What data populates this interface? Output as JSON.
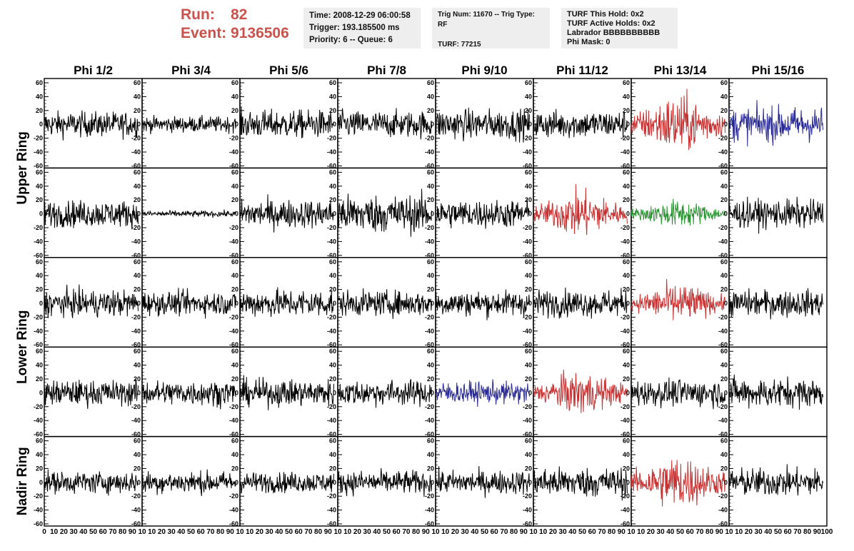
{
  "header": {
    "run_label": "Run:",
    "run_value": "82",
    "event_label": "Event:",
    "event_value": "9136506",
    "panel1": [
      "Time: 2008-12-29 06:00:58",
      "Trigger: 193.185500 ms",
      "Priority: 6 -- Queue: 6"
    ],
    "panel2": [
      "Trig Num: 11670 -- Trig Type: RF",
      "",
      "TURF: 77215"
    ],
    "panel3": [
      "TURF This Hold: 0x2",
      "TURF Active Holds: 0x2",
      "Labrador BBBBBBBBBB",
      "Phi Mask: 0"
    ]
  },
  "chart_data": {
    "type": "line",
    "columns": [
      "Phi 1/2",
      "Phi 3/4",
      "Phi 5/6",
      "Phi 7/8",
      "Phi 9/10",
      "Phi 11/12",
      "Phi 13/14",
      "Phi 15/16"
    ],
    "row_groups": [
      {
        "label": "Upper Ring",
        "rows": [
          0,
          1
        ]
      },
      {
        "label": "Lower Ring",
        "rows": [
          2,
          3
        ]
      },
      {
        "label": "Nadir Ring",
        "rows": [
          4
        ]
      }
    ],
    "xlim": [
      0,
      100
    ],
    "ylim": [
      -60,
      60
    ],
    "y_ticks": [
      60,
      40,
      20,
      0,
      -20,
      -40,
      -60
    ],
    "y_tick_labels": [
      "60",
      "40",
      "20",
      "0",
      "-20",
      "-40",
      "-60"
    ],
    "x_tick_labels": [
      "0",
      "10",
      "20",
      "30",
      "40",
      "50",
      "60",
      "70",
      "80",
      "90",
      "10",
      "10",
      "20",
      "30",
      "40",
      "50",
      "60",
      "70",
      "80",
      "90",
      "10",
      "10",
      "20",
      "30",
      "40",
      "50",
      "60",
      "70",
      "80",
      "90",
      "10",
      "10",
      "20",
      "30",
      "40",
      "50",
      "60",
      "70",
      "80",
      "90",
      "10",
      "10",
      "20",
      "30",
      "40",
      "50",
      "60",
      "70",
      "80",
      "90",
      "10",
      "10",
      "20",
      "30",
      "40",
      "50",
      "60",
      "70",
      "80",
      "90",
      "10",
      "10",
      "20",
      "30",
      "40",
      "50",
      "60",
      "70",
      "80",
      "90",
      "10",
      "10",
      "20",
      "30",
      "40",
      "50",
      "60",
      "70",
      "80",
      "90",
      "100"
    ],
    "waveform_x_range": [
      0,
      96
    ],
    "colors": {
      "normal": "#000000",
      "red": "#c83232",
      "blue": "#2a2a96",
      "green": "#2a9632"
    },
    "cells": [
      [
        {
          "c": "normal",
          "a": 16,
          "e": "flat"
        },
        {
          "c": "normal",
          "a": 10,
          "e": "flat"
        },
        {
          "c": "normal",
          "a": 18,
          "e": "flat"
        },
        {
          "c": "normal",
          "a": 17,
          "e": "flat"
        },
        {
          "c": "normal",
          "a": 19,
          "e": "flat"
        },
        {
          "c": "normal",
          "a": 18,
          "e": "flat"
        },
        {
          "c": "red",
          "a": 38,
          "e": "burst"
        },
        {
          "c": "blue",
          "a": 22,
          "e": "flat"
        }
      ],
      [
        {
          "c": "normal",
          "a": 17,
          "e": "flat"
        },
        {
          "c": "normal",
          "a": 4,
          "e": "flat"
        },
        {
          "c": "normal",
          "a": 18,
          "e": "flat"
        },
        {
          "c": "normal",
          "a": 24,
          "e": "flat"
        },
        {
          "c": "normal",
          "a": 18,
          "e": "flat"
        },
        {
          "c": "red",
          "a": 30,
          "e": "burst"
        },
        {
          "c": "green",
          "a": 18,
          "e": "burst"
        },
        {
          "c": "normal",
          "a": 18,
          "e": "flat"
        }
      ],
      [
        {
          "c": "normal",
          "a": 17,
          "e": "flat"
        },
        {
          "c": "normal",
          "a": 15,
          "e": "flat"
        },
        {
          "c": "normal",
          "a": 18,
          "e": "flat"
        },
        {
          "c": "normal",
          "a": 16,
          "e": "flat"
        },
        {
          "c": "normal",
          "a": 16,
          "e": "flat"
        },
        {
          "c": "normal",
          "a": 17,
          "e": "flat"
        },
        {
          "c": "red",
          "a": 26,
          "e": "burst"
        },
        {
          "c": "normal",
          "a": 17,
          "e": "flat"
        }
      ],
      [
        {
          "c": "normal",
          "a": 16,
          "e": "flat"
        },
        {
          "c": "normal",
          "a": 16,
          "e": "flat"
        },
        {
          "c": "normal",
          "a": 17,
          "e": "flat"
        },
        {
          "c": "normal",
          "a": 16,
          "e": "flat"
        },
        {
          "c": "blue",
          "a": 14,
          "e": "flat"
        },
        {
          "c": "red",
          "a": 28,
          "e": "burst"
        },
        {
          "c": "normal",
          "a": 17,
          "e": "flat"
        },
        {
          "c": "normal",
          "a": 19,
          "e": "flat"
        }
      ],
      [
        {
          "c": "normal",
          "a": 14,
          "e": "flat"
        },
        {
          "c": "normal",
          "a": 14,
          "e": "flat"
        },
        {
          "c": "normal",
          "a": 13,
          "e": "flat"
        },
        {
          "c": "normal",
          "a": 15,
          "e": "flat"
        },
        {
          "c": "normal",
          "a": 15,
          "e": "flat"
        },
        {
          "c": "normal",
          "a": 19,
          "e": "flat"
        },
        {
          "c": "red",
          "a": 36,
          "e": "burst"
        },
        {
          "c": "normal",
          "a": 18,
          "e": "flat"
        }
      ]
    ]
  }
}
